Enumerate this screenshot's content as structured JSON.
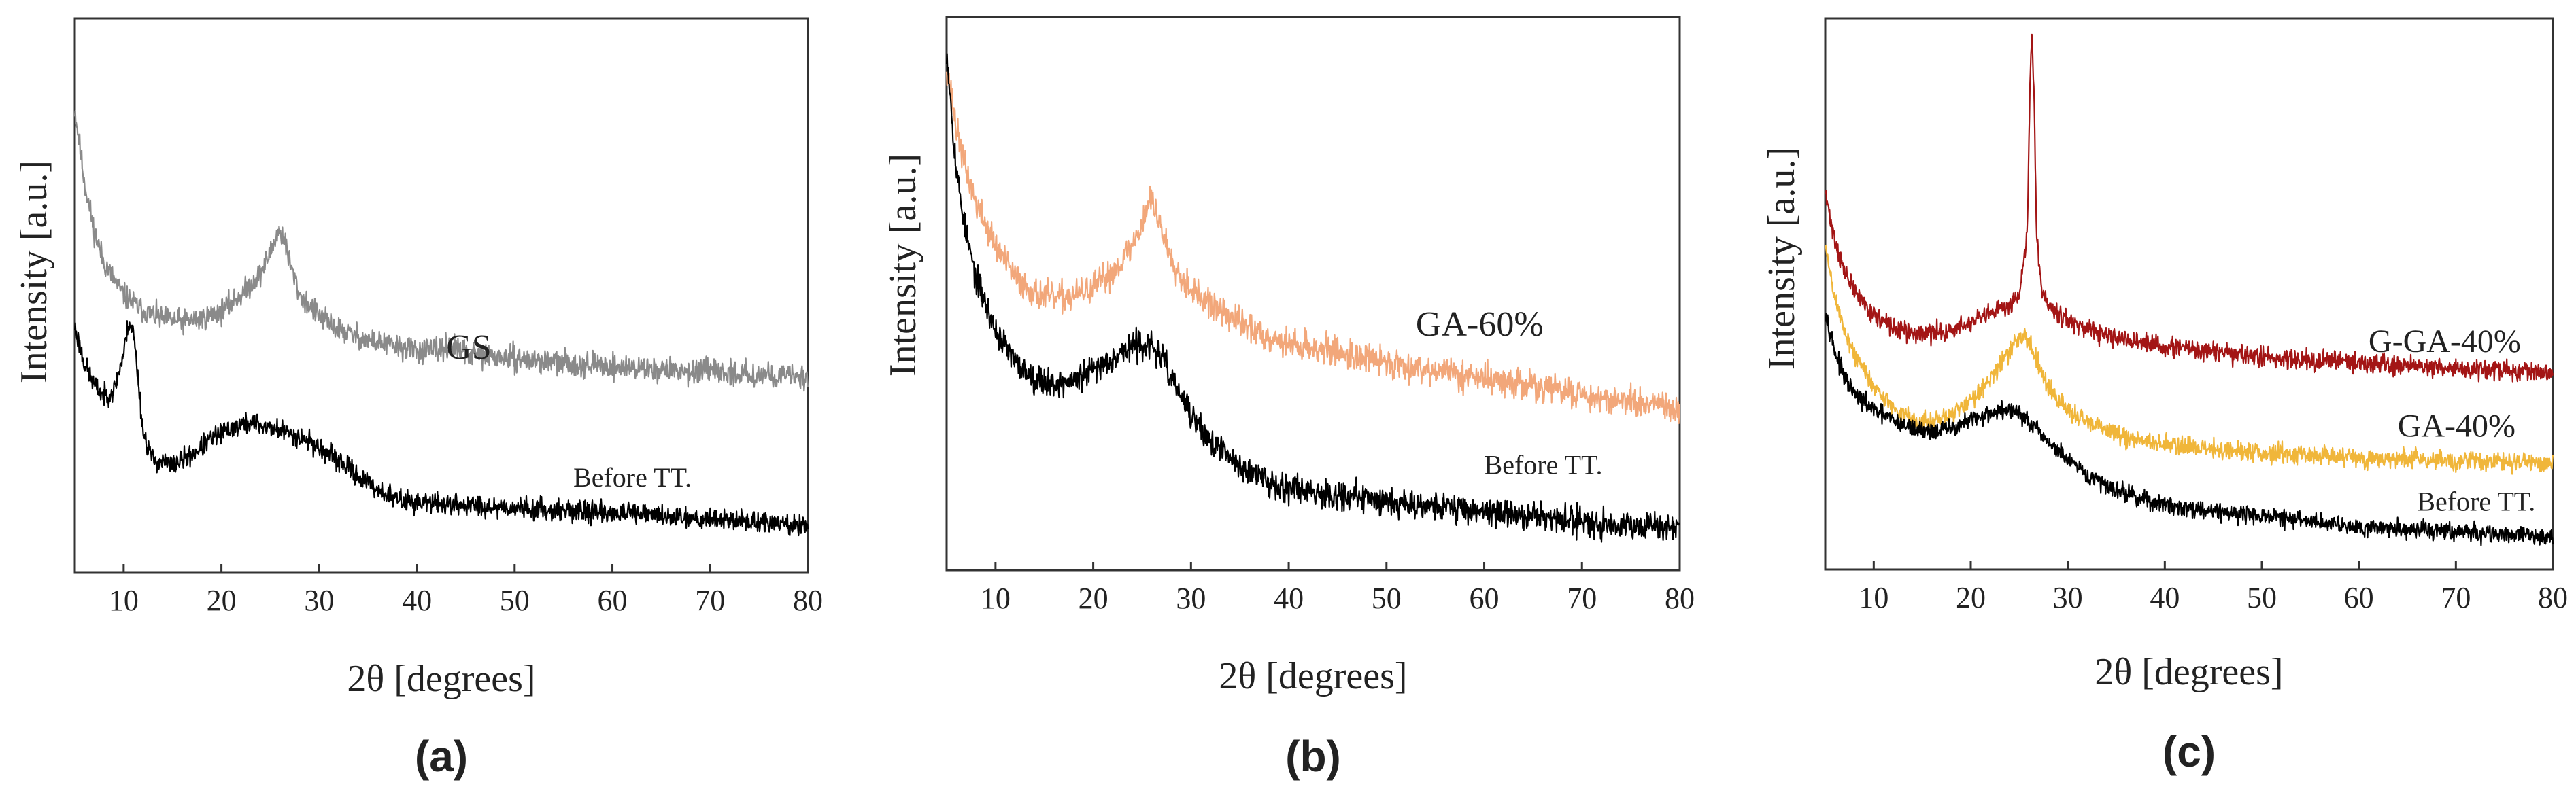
{
  "figure": {
    "type": "xrd-panels"
  },
  "chart_data": [
    {
      "type": "line",
      "panel_label": "(a)",
      "xlabel": "2θ [degrees]",
      "ylabel": "Intensity [a.u.]",
      "xlim": [
        5,
        80
      ],
      "ylim": [
        0,
        100
      ],
      "xticks": [
        10,
        20,
        30,
        40,
        50,
        60,
        70,
        80
      ],
      "yticks": [],
      "grid": false,
      "series": [
        {
          "name": "GS",
          "color": "#8a8a8a",
          "noise": 1.6,
          "seed": 11,
          "label_at": [
            43,
            37
          ],
          "label_size": 52,
          "x": [
            5,
            6,
            7,
            8,
            10,
            12,
            14,
            16,
            18,
            20,
            22,
            24,
            25,
            25.8,
            26.4,
            27,
            28,
            30,
            32,
            35,
            40,
            42,
            43.5,
            45,
            50,
            60,
            70,
            80
          ],
          "y": [
            84,
            70,
            61,
            55,
            49,
            46,
            44.5,
            44,
            44.5,
            46,
            49,
            53,
            57,
            61,
            60,
            55,
            49,
            45,
            42.5,
            40.5,
            38.5,
            38.5,
            39.5,
            38,
            37,
            35.5,
            34.5,
            33.5
          ]
        },
        {
          "name": "Before TT.",
          "color": "#000000",
          "noise": 1.4,
          "seed": 23,
          "label_at": [
            56,
            13
          ],
          "label_size": 40,
          "x": [
            5,
            6,
            7,
            8,
            9,
            10,
            10.5,
            11,
            11.5,
            12,
            13,
            15,
            17,
            19,
            21,
            23,
            25,
            27,
            29,
            31,
            33,
            35,
            38,
            40,
            45,
            50,
            60,
            70,
            80
          ],
          "y": [
            43,
            36,
            32,
            30,
            31,
            38,
            44,
            42,
            33,
            23,
            18,
            17,
            19,
            22,
            24,
            25,
            24,
            23,
            21.5,
            19,
            16.5,
            13.5,
            10.5,
            10,
            9.5,
            9,
            8,
            7,
            5.5
          ]
        }
      ]
    },
    {
      "type": "line",
      "panel_label": "(b)",
      "xlabel": "2θ [degrees]",
      "ylabel": "Intensity [a.u.]",
      "xlim": [
        5,
        80
      ],
      "ylim": [
        0,
        100
      ],
      "xticks": [
        10,
        20,
        30,
        40,
        50,
        60,
        70,
        80
      ],
      "yticks": [],
      "grid": false,
      "series": [
        {
          "name": "GA-60%",
          "color": "#f2a77a",
          "noise": 2.0,
          "seed": 37,
          "label_at": [
            53,
            41
          ],
          "label_size": 52,
          "x": [
            5,
            6,
            7,
            8,
            10,
            12,
            14,
            16,
            18,
            20,
            22,
            24,
            25,
            25.8,
            26.5,
            27.5,
            29,
            31,
            34,
            37,
            40,
            45,
            50,
            60,
            70,
            80
          ],
          "y": [
            92,
            80,
            72,
            66,
            58,
            52,
            49,
            48,
            48.5,
            50,
            53,
            58,
            62,
            67,
            64,
            58,
            52,
            48,
            44.5,
            41.5,
            39.5,
            38,
            36,
            33,
            30,
            27
          ]
        },
        {
          "name": "Before TT.",
          "color": "#000000",
          "noise": 1.9,
          "seed": 53,
          "label_at": [
            60,
            15
          ],
          "label_size": 40,
          "x": [
            5,
            6,
            7,
            8,
            10,
            12,
            14,
            16,
            18,
            20,
            22,
            24,
            25,
            26,
            27,
            28,
            30,
            32,
            35,
            38,
            40,
            45,
            50,
            60,
            70,
            80
          ],
          "y": [
            95,
            72,
            60,
            52,
            42,
            36,
            33,
            32,
            32.5,
            34.5,
            37,
            39,
            39.5,
            39,
            37,
            33,
            26,
            21,
            16.5,
            13.5,
            12.5,
            11,
            10,
            8,
            6,
            5
          ]
        }
      ]
    },
    {
      "type": "line",
      "panel_label": "(c)",
      "xlabel": "2θ [degrees]",
      "ylabel": "Intensity [a.u.]",
      "xlim": [
        5,
        80
      ],
      "ylim": [
        0,
        100
      ],
      "xticks": [
        10,
        20,
        30,
        40,
        50,
        60,
        70,
        80
      ],
      "yticks": [],
      "grid": false,
      "series": [
        {
          "name": "G-GA-40%",
          "color": "#a31515",
          "noise": 1.3,
          "seed": 71,
          "label_at": [
            61,
            38
          ],
          "label_size": 48,
          "x": [
            5,
            6,
            7,
            8,
            10,
            12,
            14,
            16,
            18,
            20,
            22,
            24,
            25,
            25.8,
            26.1,
            26.3,
            26.5,
            26.8,
            27.3,
            28,
            30,
            32,
            35,
            40,
            45,
            50,
            60,
            70,
            80
          ],
          "y": [
            68,
            59,
            53,
            49.5,
            45,
            42.5,
            41.5,
            41.5,
            42,
            43.5,
            45,
            47,
            49,
            60,
            88,
            99,
            88,
            60,
            50,
            47,
            44,
            42,
            40.5,
            39,
            38,
            37,
            36,
            35,
            34
          ]
        },
        {
          "name": "GA-40%",
          "color": "#f0b63a",
          "noise": 1.3,
          "seed": 89,
          "label_at": [
            64,
            22
          ],
          "label_size": 48,
          "x": [
            5,
            6,
            7,
            8,
            10,
            12,
            14,
            16,
            18,
            20,
            22,
            24,
            25,
            26,
            27,
            28,
            30,
            32,
            35,
            38,
            40,
            45,
            50,
            60,
            70,
            80
          ],
          "y": [
            58,
            48,
            42,
            37.5,
            31.5,
            27.5,
            25,
            24.5,
            26,
            29,
            33,
            38,
            41,
            40,
            36,
            31,
            27,
            24.5,
            22.5,
            21,
            20.5,
            19.5,
            19,
            18,
            17.5,
            17
          ]
        },
        {
          "name": "Before TT.",
          "color": "#000000",
          "noise": 1.2,
          "seed": 97,
          "label_at": [
            66,
            8
          ],
          "label_size": 40,
          "x": [
            5,
            6,
            7,
            8,
            10,
            12,
            14,
            16,
            18,
            20,
            22,
            24,
            25,
            26,
            28,
            30,
            32,
            35,
            38,
            40,
            45,
            50,
            60,
            70,
            80
          ],
          "y": [
            46,
            38,
            33,
            30,
            27,
            25,
            23.5,
            23,
            23.5,
            25,
            26.5,
            27,
            26.5,
            24.5,
            21,
            17.5,
            14.5,
            12,
            10,
            9,
            8,
            7,
            5,
            4,
            3
          ]
        }
      ]
    }
  ]
}
